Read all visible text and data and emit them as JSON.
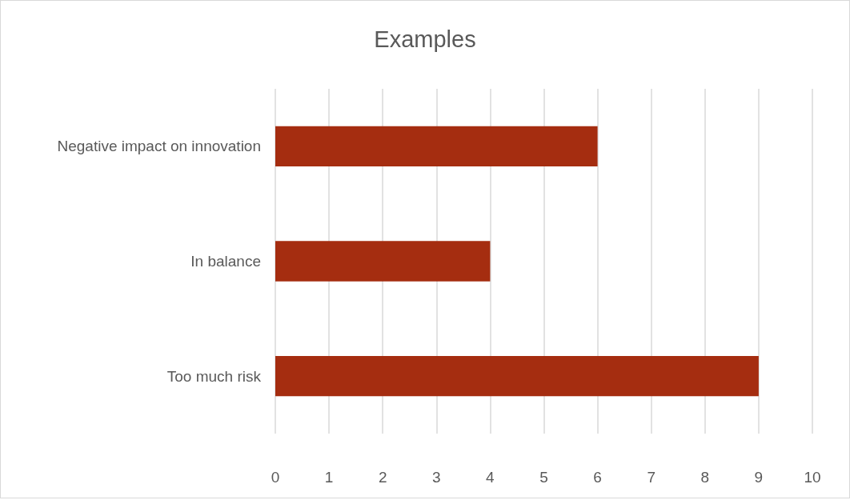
{
  "chart_data": {
    "type": "bar",
    "orientation": "horizontal",
    "title": "Examples",
    "categories": [
      "Negative impact on innovation",
      "In balance",
      "Too much risk"
    ],
    "values": [
      6,
      4,
      9
    ],
    "color": "#a52d10",
    "xlim": [
      0,
      10
    ],
    "xticks": [
      0,
      1,
      2,
      3,
      4,
      5,
      6,
      7,
      8,
      9,
      10
    ],
    "grid": "x"
  }
}
